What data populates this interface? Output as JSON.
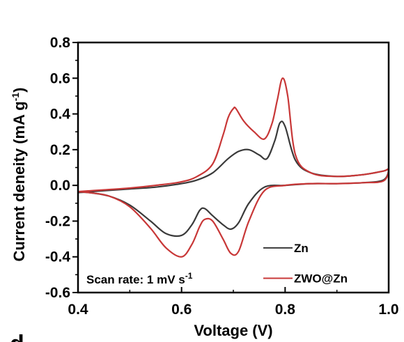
{
  "chart_data": {
    "type": "line",
    "xlabel": "Voltage (V)",
    "ylabel_main": "Current deneity (mA g",
    "ylabel_sup": "-1",
    "ylabel_end": ")",
    "xlim": [
      0.4,
      1.0
    ],
    "ylim": [
      -0.6,
      0.8
    ],
    "x_ticks": [
      "0.4",
      "0.6",
      "0.8",
      "1.0"
    ],
    "y_ticks": [
      "0.8",
      "0.6",
      "0.4",
      "0.2",
      "0.0",
      "-0.2",
      "-0.4",
      "-0.6"
    ],
    "grid": false,
    "legend_position": "bottom-right",
    "annotation_main": "Scan rate: 1 mV s",
    "annotation_sup": "-1",
    "panel_letter": "d",
    "series": [
      {
        "name": "Zn",
        "color": "#3a3a3a",
        "x": [
          0.4,
          0.45,
          0.5,
          0.55,
          0.6,
          0.63,
          0.66,
          0.69,
          0.71,
          0.73,
          0.75,
          0.765,
          0.78,
          0.79,
          0.8,
          0.82,
          0.85,
          0.9,
          0.95,
          0.99,
          1.0,
          0.99,
          0.95,
          0.9,
          0.85,
          0.8,
          0.76,
          0.73,
          0.71,
          0.695,
          0.68,
          0.66,
          0.645,
          0.635,
          0.62,
          0.6,
          0.57,
          0.54,
          0.5,
          0.46,
          0.42,
          0.4
        ],
        "y": [
          -0.04,
          -0.03,
          -0.02,
          -0.01,
          0.01,
          0.03,
          0.07,
          0.15,
          0.19,
          0.2,
          0.17,
          0.15,
          0.25,
          0.35,
          0.33,
          0.14,
          0.07,
          0.05,
          0.06,
          0.08,
          0.09,
          0.03,
          0.015,
          0.01,
          0.01,
          0.0,
          -0.01,
          -0.1,
          -0.21,
          -0.245,
          -0.22,
          -0.17,
          -0.13,
          -0.14,
          -0.22,
          -0.28,
          -0.27,
          -0.2,
          -0.11,
          -0.06,
          -0.04,
          -0.04
        ]
      },
      {
        "name": "ZWO@Zn",
        "color": "#c83737",
        "x": [
          0.4,
          0.45,
          0.5,
          0.55,
          0.6,
          0.63,
          0.66,
          0.68,
          0.69,
          0.7,
          0.705,
          0.72,
          0.74,
          0.76,
          0.775,
          0.785,
          0.795,
          0.805,
          0.82,
          0.85,
          0.9,
          0.95,
          0.99,
          1.0,
          0.99,
          0.95,
          0.9,
          0.85,
          0.8,
          0.76,
          0.73,
          0.71,
          0.695,
          0.68,
          0.66,
          0.645,
          0.635,
          0.62,
          0.6,
          0.57,
          0.54,
          0.5,
          0.46,
          0.42,
          0.4
        ],
        "y": [
          -0.035,
          -0.025,
          -0.015,
          0.0,
          0.02,
          0.05,
          0.12,
          0.28,
          0.38,
          0.43,
          0.43,
          0.36,
          0.3,
          0.26,
          0.35,
          0.48,
          0.6,
          0.5,
          0.17,
          0.07,
          0.05,
          0.06,
          0.08,
          0.09,
          0.025,
          0.015,
          0.01,
          0.01,
          0.0,
          -0.03,
          -0.2,
          -0.37,
          -0.38,
          -0.3,
          -0.2,
          -0.19,
          -0.23,
          -0.33,
          -0.4,
          -0.35,
          -0.24,
          -0.12,
          -0.06,
          -0.04,
          -0.035
        ]
      }
    ]
  }
}
